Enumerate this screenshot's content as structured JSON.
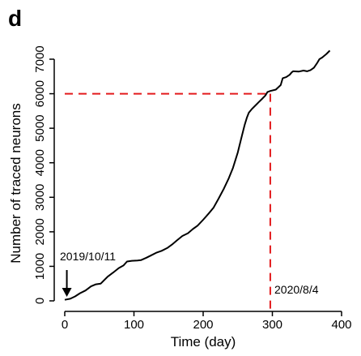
{
  "panel_label": "d",
  "chart_data": {
    "type": "line",
    "xlabel": "Time (day)",
    "ylabel": "Number of traced neurons",
    "xlim": [
      0,
      400
    ],
    "ylim": [
      0,
      7000
    ],
    "x_ticks": [
      "0",
      "100",
      "200",
      "300",
      "400"
    ],
    "y_ticks": [
      "0",
      "1000",
      "2000",
      "3000",
      "4000",
      "5000",
      "6000",
      "7000"
    ],
    "grid": false,
    "series": [
      {
        "color": "#000000",
        "x": [
          0,
          8,
          15,
          22,
          30,
          38,
          45,
          52,
          55,
          62,
          70,
          78,
          85,
          90,
          97,
          105,
          110,
          118,
          125,
          133,
          140,
          148,
          155,
          162,
          170,
          178,
          185,
          192,
          200,
          208,
          215,
          222,
          230,
          237,
          243,
          250,
          255,
          260,
          263,
          266,
          270,
          275,
          280,
          285,
          290,
          293,
          297,
          305,
          312,
          315,
          320,
          325,
          328,
          330,
          338,
          345,
          350,
          355,
          360,
          365,
          368,
          372,
          378,
          383
        ],
        "y": [
          30,
          60,
          130,
          220,
          300,
          420,
          480,
          500,
          560,
          700,
          820,
          950,
          1030,
          1140,
          1160,
          1170,
          1180,
          1250,
          1320,
          1400,
          1450,
          1530,
          1630,
          1750,
          1880,
          1960,
          2080,
          2180,
          2350,
          2530,
          2700,
          2950,
          3250,
          3550,
          3850,
          4300,
          4700,
          5100,
          5300,
          5450,
          5550,
          5650,
          5750,
          5850,
          5950,
          6050,
          6080,
          6120,
          6250,
          6450,
          6480,
          6550,
          6620,
          6650,
          6640,
          6670,
          6650,
          6680,
          6750,
          6900,
          7000,
          7050,
          7150,
          7250
        ]
      }
    ],
    "reference_lines": {
      "color": "#e31a1c",
      "horizontal_y": 6000,
      "vertical_x": 297
    },
    "annotations": {
      "start_label": "2019/10/11",
      "start_x": 3,
      "end_label": "2020/8/4",
      "end_x": 297
    }
  }
}
